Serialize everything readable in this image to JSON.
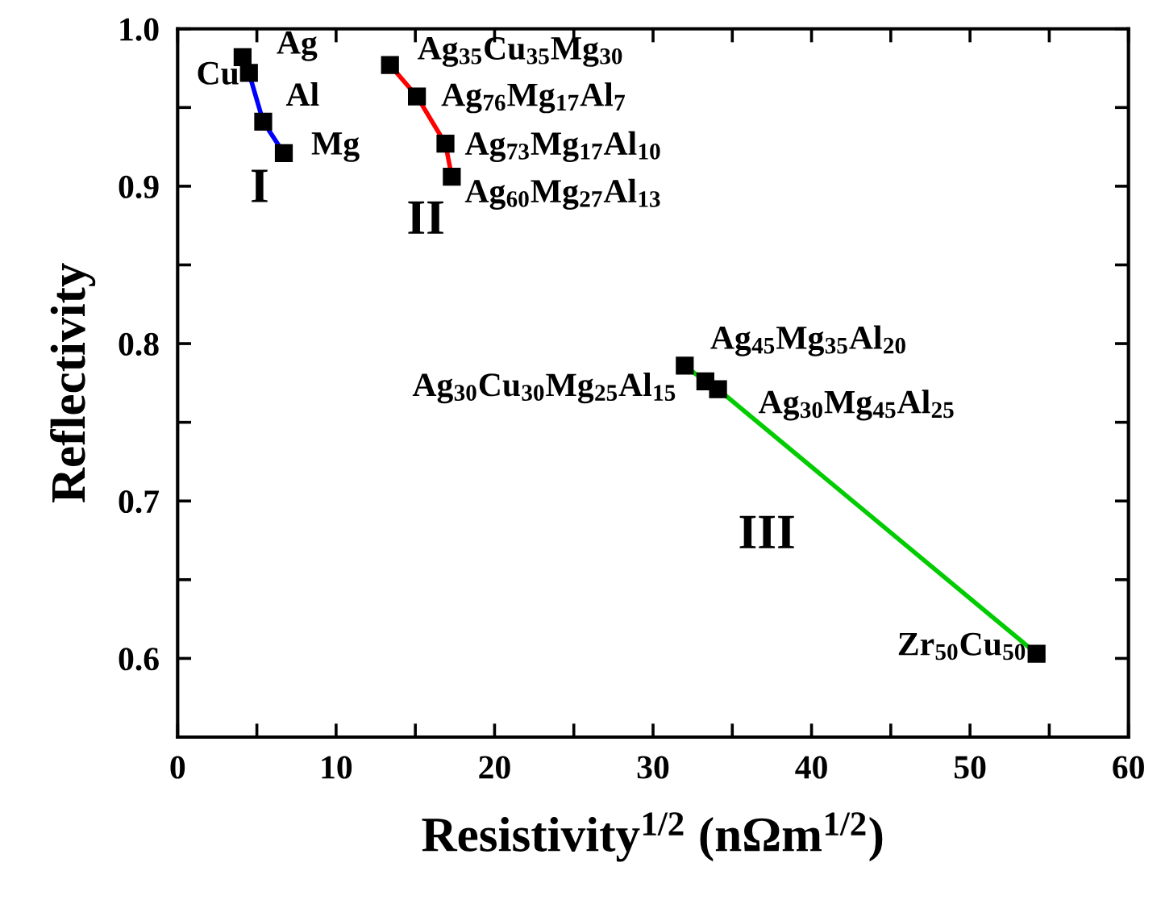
{
  "chart_data": {
    "type": "line",
    "xlabel": "Resistivity$^{1/2}$ (nΩm$^{1/2}$)",
    "ylabel": "Reflectivity",
    "xlim": [
      0,
      60
    ],
    "ylim": [
      0.55,
      1.0
    ],
    "xticks": [
      0,
      {
        "value": 5,
        "label": null
      },
      10,
      {
        "value": 15,
        "label": null
      },
      20,
      {
        "value": 25,
        "label": null
      },
      30,
      {
        "value": 35,
        "label": null
      },
      40,
      {
        "value": 45,
        "label": null
      },
      50,
      {
        "value": 55,
        "label": null
      },
      60
    ],
    "yticks": [
      {
        "value": 0.55,
        "label": null
      },
      0.6,
      {
        "value": 0.65,
        "label": null
      },
      0.7,
      {
        "value": 0.75,
        "label": null
      },
      0.8,
      {
        "value": 0.85,
        "label": null
      },
      0.9,
      {
        "value": 0.95,
        "label": null
      },
      {
        "value": 1.0,
        "label": "1.0"
      }
    ],
    "grid": false,
    "legend": false,
    "marker": "square",
    "line_style": "solid",
    "series": [
      {
        "color": "#0000ff",
        "x": [
          4.1,
          4.5,
          5.4,
          6.7
        ],
        "values": [
          0.982,
          0.972,
          0.941,
          0.921
        ]
      },
      {
        "color": "#ff0000",
        "x": [
          13.4,
          15.1,
          16.9,
          17.3
        ],
        "values": [
          0.977,
          0.957,
          0.927,
          0.906
        ]
      },
      {
        "color": "#00cc00",
        "x": [
          32.0,
          33.3,
          34.1,
          54.2
        ],
        "values": [
          0.786,
          0.776,
          0.771,
          0.603
        ]
      }
    ],
    "annotations": [
      {
        "text": "Ag",
        "x": 4.1,
        "y": 0.982
      },
      {
        "text": "Cu",
        "x": 4.5,
        "y": 0.972
      },
      {
        "text": "Al",
        "x": 5.4,
        "y": 0.941
      },
      {
        "text": "Mg",
        "x": 6.7,
        "y": 0.921
      },
      {
        "text": "I",
        "x": 6.7,
        "y": 0.921
      },
      {
        "text": "Ag$_{35}$Cu$_{35}$Mg$_{30}$",
        "x": 13.4,
        "y": 0.977
      },
      {
        "text": "Ag$_{76}$Mg$_{17}$Al$_{7}$",
        "x": 15.1,
        "y": 0.957
      },
      {
        "text": "Ag$_{73}$Mg$_{17}$Al$_{10}$",
        "x": 16.9,
        "y": 0.927
      },
      {
        "text": "Ag$_{60}$Mg$_{27}$Al$_{13}$",
        "x": 17.3,
        "y": 0.906
      },
      {
        "text": "II",
        "x": 17.3,
        "y": 0.906
      },
      {
        "text": "Ag$_{45}$Mg$_{35}$Al$_{20}$",
        "x": 33.3,
        "y": 0.776
      },
      {
        "text": "Ag$_{30}$Cu$_{30}$Mg$_{25}$Al$_{15}$",
        "x": 32.0,
        "y": 0.786
      },
      {
        "text": "Ag$_{30}$Mg$_{45}$Al$_{25}$",
        "x": 34.1,
        "y": 0.771
      },
      {
        "text": "III",
        "x": 43.1,
        "y": 0.696
      },
      {
        "text": "Zr$_{50}$Cu$_{50}$",
        "x": 54.2,
        "y": 0.603
      }
    ]
  }
}
